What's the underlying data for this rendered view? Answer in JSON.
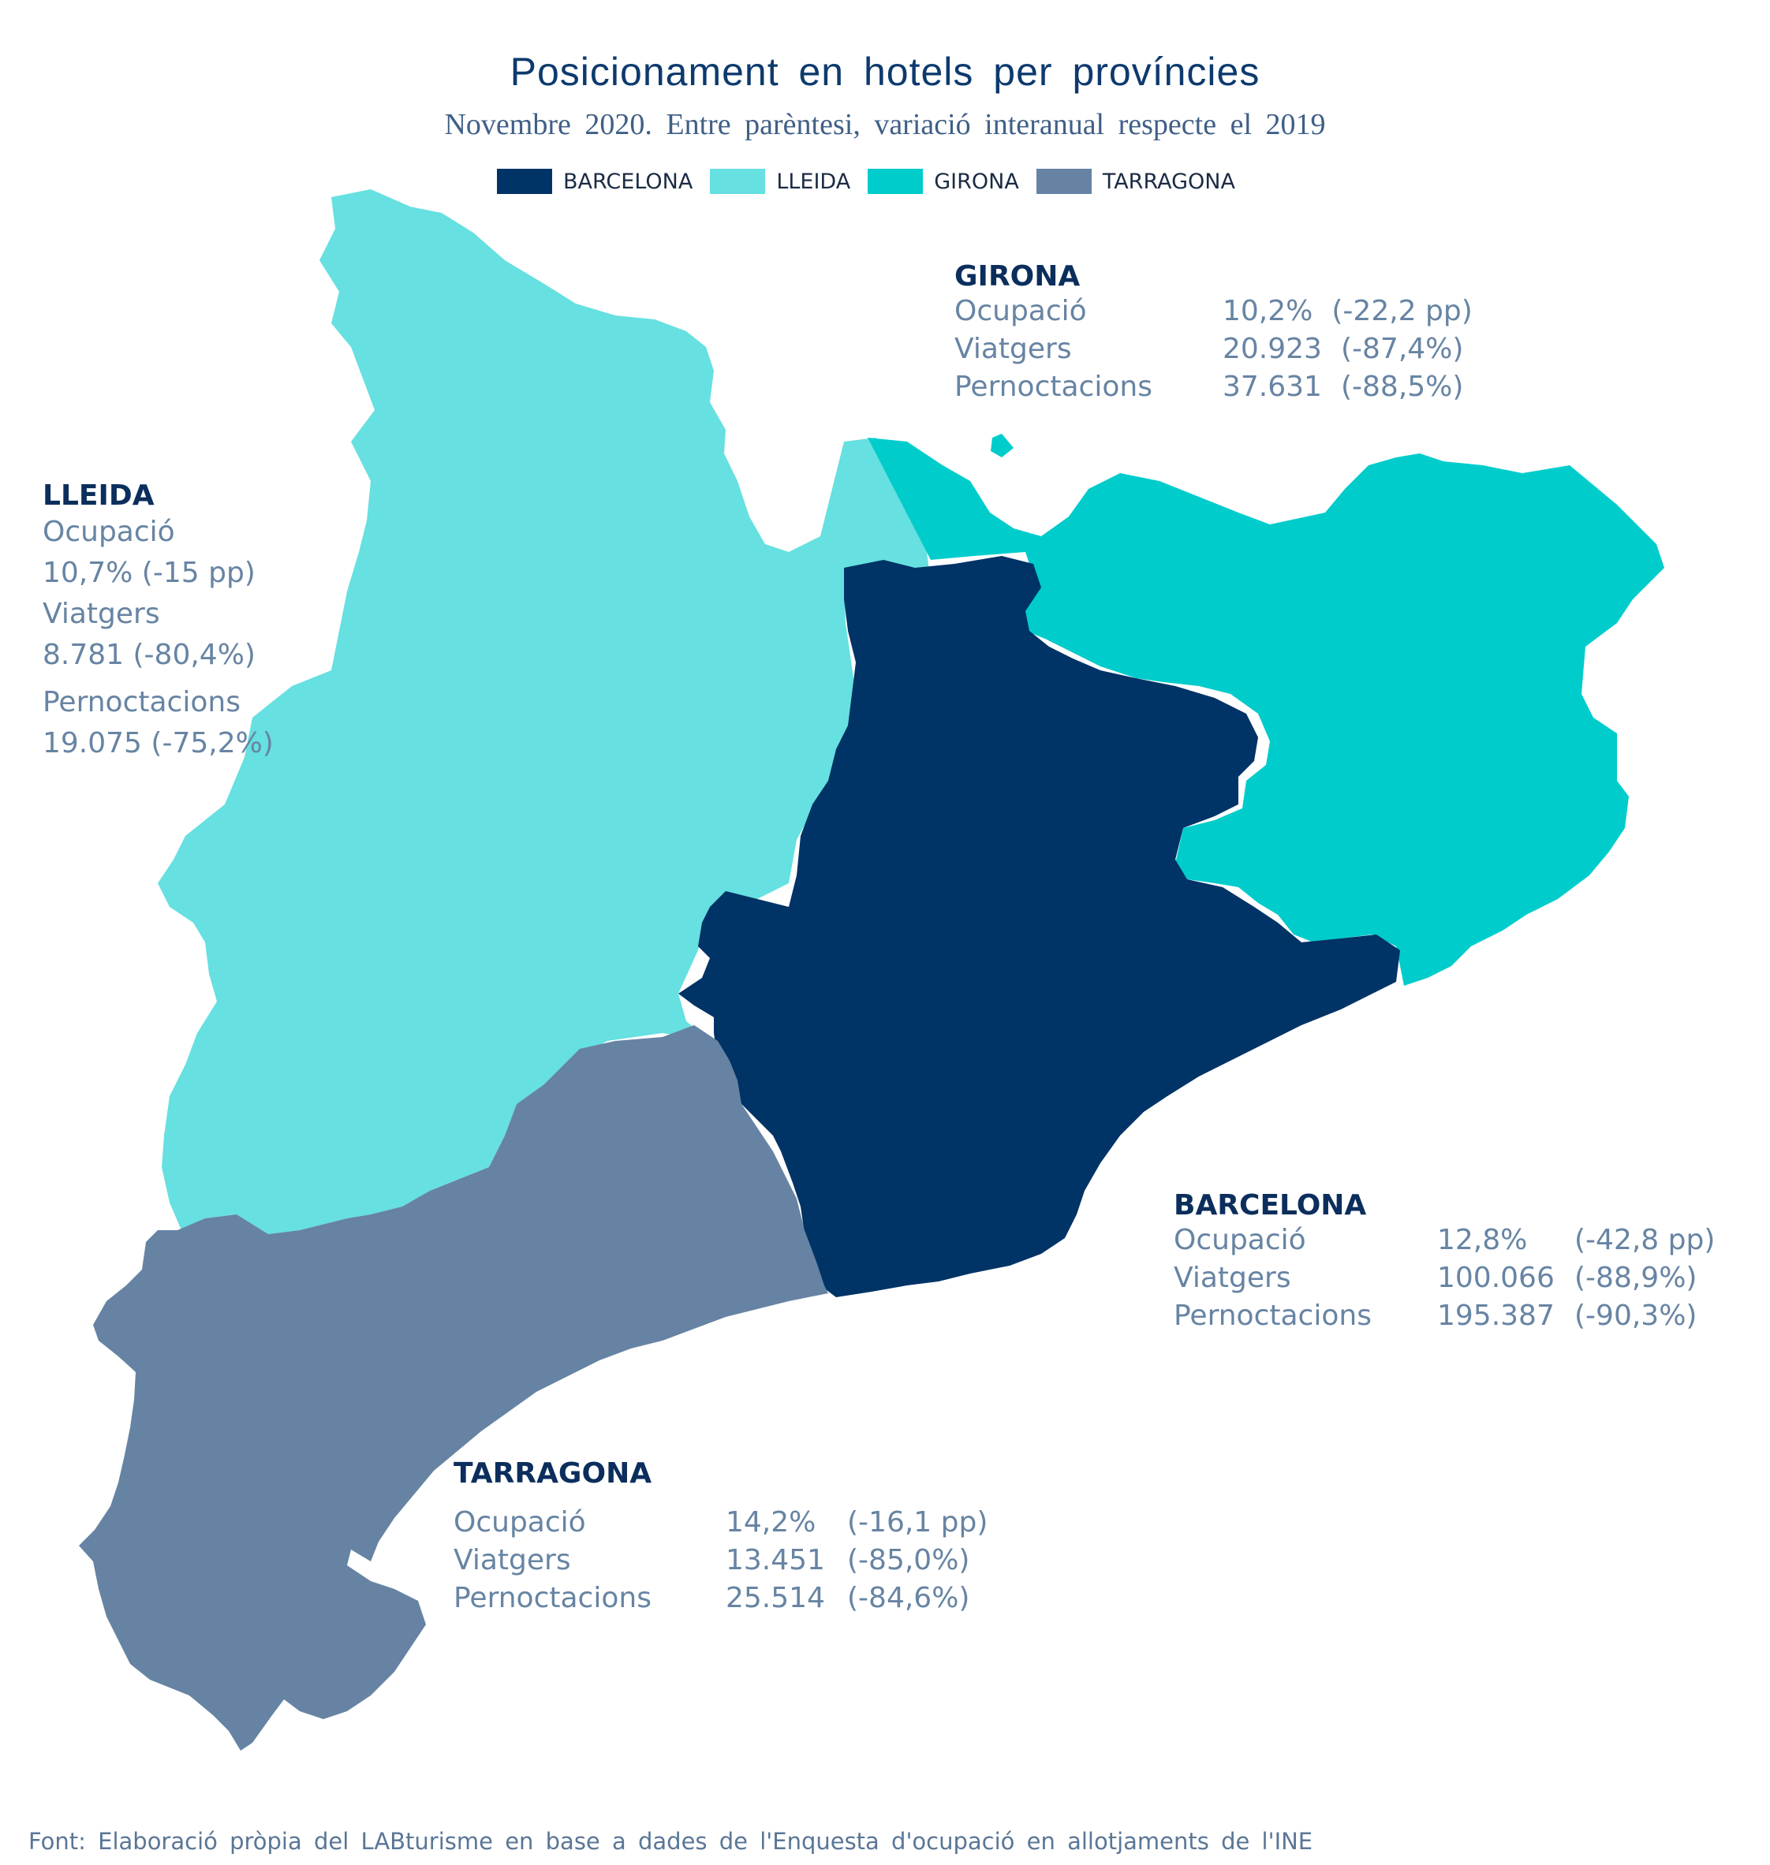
{
  "title": "Posicionament en hotels per províncies",
  "subtitle": "Novembre 2020. Entre parèntesi, variació interanual respecte el 2019",
  "legend": [
    {
      "label": "BARCELONA",
      "color": "#003366"
    },
    {
      "label": "LLEIDA",
      "color": "#66e0e0"
    },
    {
      "label": "GIRONA",
      "color": "#00cccc"
    },
    {
      "label": "TARRAGONA",
      "color": "#6683a3"
    }
  ],
  "provinces": {
    "girona": {
      "name": "GIRONA",
      "ocupacio_label": "Ocupació",
      "ocupacio": "10,2%",
      "ocupacio_var": "(-22,2 pp)",
      "viatgers_label": "Viatgers",
      "viatgers": "20.923",
      "viatgers_var": "(-87,4%)",
      "pernoctacions_label": "Pernoctacions",
      "pernoctacions": "37.631",
      "pernoctacions_var": "(-88,5%)"
    },
    "lleida": {
      "name": "LLEIDA",
      "ocupacio_label": "Ocupació",
      "ocupacio_line": "10,7% (-15 pp)",
      "viatgers_label": "Viatgers",
      "viatgers_line": "8.781 (-80,4%)",
      "pernoctacions_label": "Pernoctacions",
      "pernoctacions_line": "19.075 (-75,2%)"
    },
    "barcelona": {
      "name": "BARCELONA",
      "ocupacio_label": "Ocupació",
      "ocupacio": "12,8%",
      "ocupacio_var": "(-42,8 pp)",
      "viatgers_label": "Viatgers",
      "viatgers": "100.066",
      "viatgers_var": "(-88,9%)",
      "pernoctacions_label": "Pernoctacions",
      "pernoctacions": "195.387",
      "pernoctacions_var": "(-90,3%)"
    },
    "tarragona": {
      "name": "TARRAGONA",
      "ocupacio_label": "Ocupació",
      "ocupacio": "14,2%",
      "ocupacio_var": "(-16,1 pp)",
      "viatgers_label": "Viatgers",
      "viatgers": "13.451",
      "viatgers_var": "(-85,0%)",
      "pernoctacions_label": "Pernoctacions",
      "pernoctacions": "25.514",
      "pernoctacions_var": "(-84,6%)"
    }
  },
  "source": "Font: Elaboració pròpia del LABturisme en base a dades de l'Enquesta d'ocupació en allotjaments de l'INE"
}
